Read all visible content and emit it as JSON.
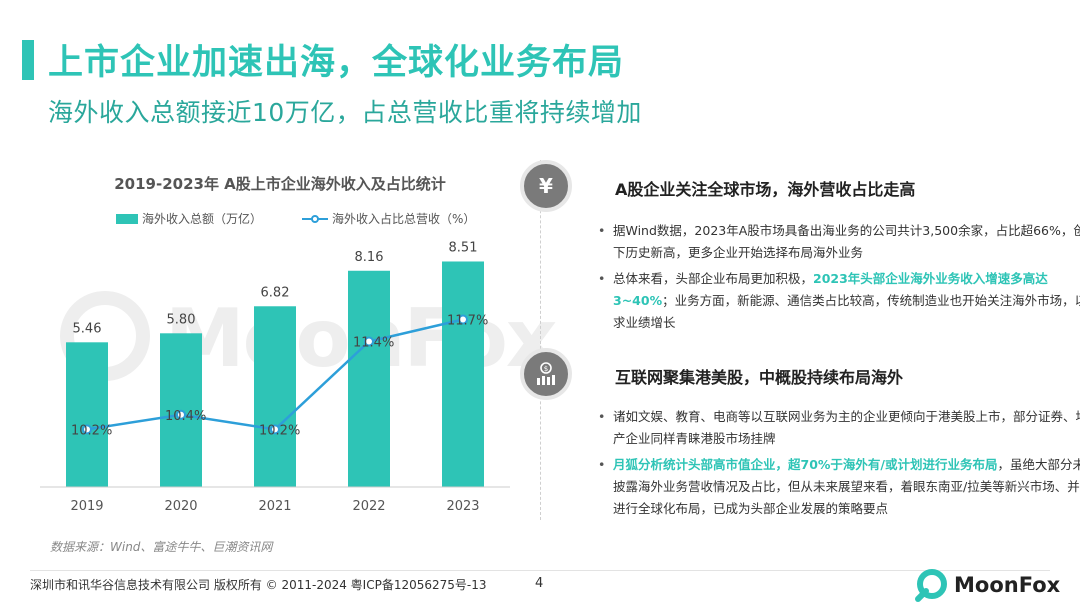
{
  "colors": {
    "accent": "#2ec4b6",
    "line": "#2d9fd9",
    "title": "#2ec4b6",
    "subtitle": "#2aa79b"
  },
  "header": {
    "title": "上市企业加速出海，全球化业务布局",
    "subtitle": "海外收入总额接近10万亿，占总营收比重将持续增加"
  },
  "watermark": {
    "text": "MoonFox"
  },
  "chart_data": {
    "type": "bar",
    "title": "2019-2023年 A股上市企业海外收入及占比统计",
    "categories": [
      "2019",
      "2020",
      "2021",
      "2022",
      "2023"
    ],
    "series": [
      {
        "name": "海外收入总额（万亿）",
        "type": "bar",
        "values": [
          5.46,
          5.8,
          6.82,
          8.16,
          8.51
        ],
        "labels": [
          "5.46",
          "5.80",
          "6.82",
          "8.16",
          "8.51"
        ]
      },
      {
        "name": "海外收入占比总营收（%）",
        "type": "line",
        "values": [
          10.2,
          10.4,
          10.2,
          11.4,
          11.7
        ],
        "labels": [
          "10.2%",
          "10.4%",
          "10.2%",
          "11.4%",
          "11.7%"
        ]
      }
    ],
    "legend_position": "top-left",
    "grid": false
  },
  "source": "数据来源：Wind、富途牛牛、巨潮资讯网",
  "sections": [
    {
      "icon": "yen-icon",
      "icon_glyph": "¥",
      "heading": "A股企业关注全球市场，海外营收占比走高",
      "bullets": [
        {
          "parts": [
            {
              "text": "据Wind数据，2023年A股市场具备出海业务的公司共计3,500余家，占比超66%，创下历史新高，更多企业开始选择布局海外业务",
              "hl": false
            }
          ]
        },
        {
          "parts": [
            {
              "text": "总体来看，头部企业布局更加积极，",
              "hl": false
            },
            {
              "text": "2023年头部企业海外业务收入增速多高达3~40%",
              "hl": true
            },
            {
              "text": "；业务方面，新能源、通信类占比较高，传统制造业也开始关注海外市场，以求业绩增长",
              "hl": false
            }
          ]
        }
      ]
    },
    {
      "icon": "coin-chart-icon",
      "icon_glyph": "$",
      "heading": "互联网聚集港美股，中概股持续布局海外",
      "bullets": [
        {
          "parts": [
            {
              "text": "诸如文娱、教育、电商等以互联网业务为主的企业更倾向于港美股上市，部分证券、地产企业同样青睐港股市场挂牌",
              "hl": false
            }
          ]
        },
        {
          "parts": [
            {
              "text": "月狐分析统计头部高市值企业，超70%于海外有/或计划进行业务布局",
              "hl": true
            },
            {
              "text": "，虽绝大部分未披露海外业务营收情况及占比，但从未来展望来看，着眼东南亚/拉美等新兴市场、并进行全球化布局，已成为头部企业发展的策略要点",
              "hl": false
            }
          ]
        }
      ]
    }
  ],
  "footer": {
    "copyright": "深圳市和讯华谷信息技术有限公司 版权所有 © 2011-2024 粤ICP备12056275号-13",
    "page": "4",
    "logo_text": "MoonFox"
  }
}
